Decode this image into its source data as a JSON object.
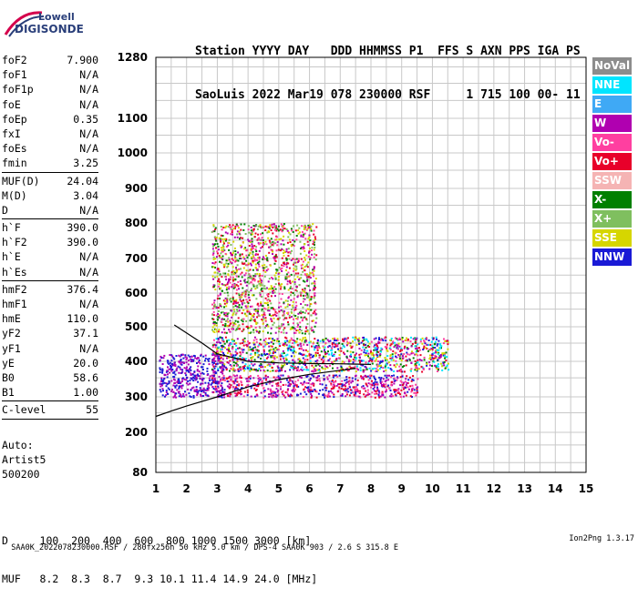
{
  "logo": {
    "line1": "Lowell",
    "line2": "DIGISONDE"
  },
  "header": {
    "line1": "Station YYYY DAY   DDD HHMMSS P1  FFS S AXN PPS IGA PS",
    "line2": "SaoLuis 2022 Mar19 078 230000 RSF     1 715 100 00- 11"
  },
  "params": [
    {
      "k": "foF2",
      "v": "7.900"
    },
    {
      "k": "foF1",
      "v": "N/A"
    },
    {
      "k": "foF1p",
      "v": "N/A"
    },
    {
      "k": "foE",
      "v": "N/A"
    },
    {
      "k": "foEp",
      "v": "0.35"
    },
    {
      "k": "fxI",
      "v": "N/A"
    },
    {
      "k": "foEs",
      "v": "N/A"
    },
    {
      "k": "fmin",
      "v": "3.25"
    },
    {
      "sep": true
    },
    {
      "k": "MUF(D)",
      "v": "24.04"
    },
    {
      "k": "M(D)",
      "v": "3.04"
    },
    {
      "k": "D",
      "v": "N/A"
    },
    {
      "sep": true
    },
    {
      "k": "h`F",
      "v": "390.0"
    },
    {
      "k": "h`F2",
      "v": "390.0"
    },
    {
      "k": "h`E",
      "v": "N/A"
    },
    {
      "k": "h`Es",
      "v": "N/A"
    },
    {
      "sep": true
    },
    {
      "k": "hmF2",
      "v": "376.4"
    },
    {
      "k": "hmF1",
      "v": "N/A"
    },
    {
      "k": "hmE",
      "v": "110.0"
    },
    {
      "k": "yF2",
      "v": "37.1"
    },
    {
      "k": "yF1",
      "v": "N/A"
    },
    {
      "k": "yE",
      "v": "20.0"
    },
    {
      "k": "B0",
      "v": "58.6"
    },
    {
      "k": "B1",
      "v": "1.00"
    },
    {
      "sep": true
    },
    {
      "k": "C-level",
      "v": "55"
    },
    {
      "sep": true
    }
  ],
  "auto": {
    "line1": "Auto:",
    "line2": "Artist5",
    "line3": "500200"
  },
  "legend": [
    {
      "label": "NoVal",
      "color": "#8c8c8c"
    },
    {
      "label": "NNE",
      "color": "#00e5ff"
    },
    {
      "label": "E",
      "color": "#3fa9f5"
    },
    {
      "label": "W",
      "color": "#b000b0"
    },
    {
      "label": "Vo-",
      "color": "#ff3fa0"
    },
    {
      "label": "Vo+",
      "color": "#e8002a"
    },
    {
      "label": "SSW",
      "color": "#f5b4b4"
    },
    {
      "label": "X-",
      "color": "#008000"
    },
    {
      "label": "X+",
      "color": "#7fbf5f"
    },
    {
      "label": "SSE",
      "color": "#d6d600"
    },
    {
      "label": "NNW",
      "color": "#1a1ad6"
    }
  ],
  "muf_table": {
    "d_row": "D     100  200  400  600  800 1000 1500 3000 [km]",
    "muf_row": "MUF   8.2  8.3  8.7  9.3 10.1 11.4 14.9 24.0 [MHz]"
  },
  "footer": {
    "left": "SAA0K_2022078230000.RSF / 280fx256h 50 kHz 5.0 km / DPS-4 SAA0K 903 / 2.6 S 315.8 E",
    "right": "Ion2Png 1.3.17"
  },
  "chart_data": {
    "type": "scatter",
    "title": "",
    "xlabel": "",
    "ylabel": "",
    "xlim": [
      1,
      15
    ],
    "ylim": [
      80,
      1280
    ],
    "x_ticks": [
      1,
      2,
      3,
      4,
      5,
      6,
      7,
      8,
      9,
      10,
      11,
      12,
      13,
      14,
      15
    ],
    "y_ticks": [
      80,
      200,
      300,
      400,
      500,
      600,
      700,
      800,
      900,
      1000,
      1100,
      1280
    ],
    "y_scale": "piecewise-log",
    "grid": true,
    "echo_regions": [
      {
        "name": "F2 trace low",
        "x": [
          2.8,
          9.5
        ],
        "y": [
          300,
          360
        ],
        "colors": [
          "#b000b0",
          "#e8002a",
          "#1a1ad6",
          "#ff3fa0"
        ]
      },
      {
        "name": "F2 trace main",
        "x": [
          2.8,
          10.5
        ],
        "y": [
          370,
          470
        ],
        "colors": [
          "#b000b0",
          "#e8002a",
          "#ff3fa0",
          "#1a1ad6",
          "#008000",
          "#00e5ff",
          "#d6d600"
        ]
      },
      {
        "name": "spread F",
        "x": [
          2.8,
          6.2
        ],
        "y": [
          480,
          800
        ],
        "colors": [
          "#b000b0",
          "#d6d600",
          "#ff3fa0",
          "#008000",
          "#7fbf5f",
          "#e8002a"
        ]
      },
      {
        "name": "NNW low",
        "x": [
          1.1,
          3.2
        ],
        "y": [
          300,
          420
        ],
        "colors": [
          "#1a1ad6",
          "#b000b0"
        ]
      }
    ],
    "fit_curves": [
      {
        "name": "upper",
        "points": [
          [
            1.6,
            505
          ],
          [
            2.5,
            450
          ],
          [
            3.0,
            420
          ],
          [
            4.0,
            400
          ],
          [
            5.0,
            395
          ],
          [
            6.0,
            393
          ],
          [
            7.0,
            392
          ],
          [
            8.0,
            390
          ]
        ]
      },
      {
        "name": "lower",
        "points": [
          [
            1.0,
            240
          ],
          [
            1.5,
            255
          ],
          [
            2.0,
            270
          ],
          [
            3.0,
            300
          ],
          [
            4.0,
            325
          ],
          [
            5.0,
            345
          ],
          [
            6.0,
            360
          ],
          [
            7.0,
            372
          ],
          [
            7.5,
            378
          ]
        ]
      }
    ]
  }
}
